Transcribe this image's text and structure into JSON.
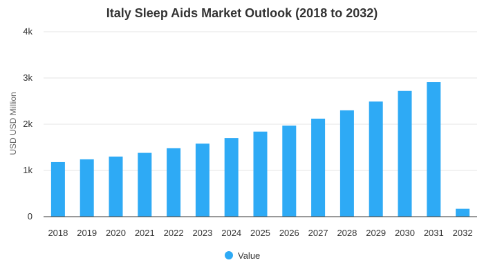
{
  "chart_data": {
    "type": "bar",
    "title": "Italy Sleep Aids Market Outlook (2018 to 2032)",
    "xlabel": "",
    "ylabel": "USD USD Million",
    "categories": [
      "2018",
      "2019",
      "2020",
      "2021",
      "2022",
      "2023",
      "2024",
      "2025",
      "2026",
      "2027",
      "2028",
      "2029",
      "2030",
      "2031",
      "2032"
    ],
    "series": [
      {
        "name": "Value",
        "values": [
          1180,
          1240,
          1300,
          1380,
          1480,
          1580,
          1700,
          1840,
          1970,
          2120,
          2300,
          2490,
          2720,
          2910,
          170
        ]
      }
    ],
    "ylim": [
      0,
      4000
    ],
    "yticks": [
      0,
      1000,
      2000,
      3000,
      4000
    ],
    "ytick_labels": [
      "0",
      "1k",
      "2k",
      "3k",
      "4k"
    ],
    "grid": true,
    "legend_position": "bottom",
    "colors": {
      "bar": "#2eaaf5",
      "grid": "#e6e6e6",
      "axis": "#333333",
      "text": "#333333"
    }
  }
}
